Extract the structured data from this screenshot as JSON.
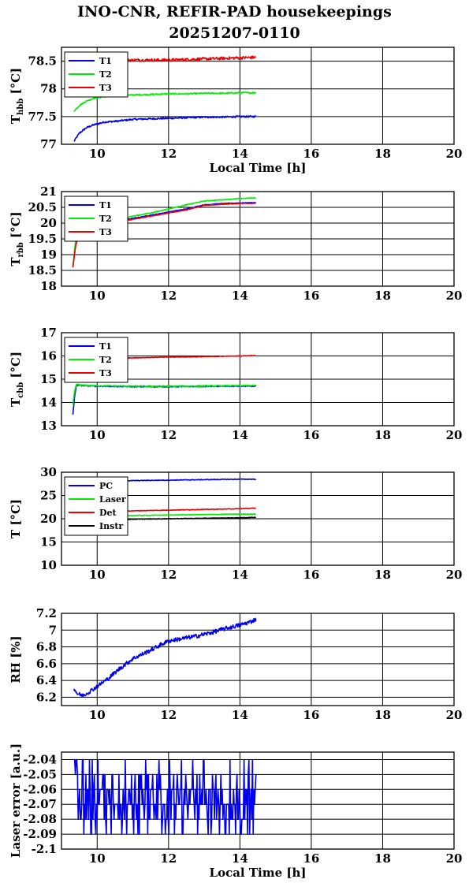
{
  "title_line1": "INO-CNR, REFIR-PAD housekeepings",
  "title_line2": "20251207-0110",
  "chart_data": [
    {
      "type": "line",
      "ylabel": "T",
      "ylabel_sub": "hbb",
      "ylabel_unit": " [°C]",
      "xlabel": "Local Time [h]",
      "xlim": [
        9,
        20
      ],
      "ylim": [
        77,
        78.75
      ],
      "xticks": [
        10,
        12,
        14,
        16,
        18,
        20
      ],
      "yticks": [
        77,
        77.5,
        78,
        78.5
      ],
      "ytick_labels": [
        "77",
        "77.5",
        "78",
        "78.5"
      ],
      "grid": true,
      "legend_position": "top-left",
      "series": [
        {
          "name": "T1",
          "color": "#0000ee",
          "x": [
            9.35,
            9.5,
            9.7,
            9.9,
            10.2,
            10.6,
            11,
            11.5,
            12,
            12.5,
            13,
            13.5,
            14,
            14.45
          ],
          "y": [
            77.05,
            77.2,
            77.3,
            77.35,
            77.4,
            77.42,
            77.45,
            77.46,
            77.47,
            77.48,
            77.49,
            77.49,
            77.5,
            77.5
          ],
          "noise": 0.015
        },
        {
          "name": "T2",
          "color": "#00ee00",
          "x": [
            9.35,
            9.5,
            9.7,
            9.9,
            10.2,
            10.6,
            11,
            11.5,
            12,
            12.5,
            13,
            13.5,
            14,
            14.45
          ],
          "y": [
            77.6,
            77.7,
            77.78,
            77.83,
            77.86,
            77.88,
            77.89,
            77.9,
            77.91,
            77.91,
            77.92,
            77.92,
            77.93,
            77.93
          ],
          "noise": 0.012
        },
        {
          "name": "T3",
          "color": "#ee0000",
          "x": [
            10.3,
            10.6,
            11,
            11.5,
            12,
            12.5,
            13,
            13.5,
            14,
            14.45
          ],
          "y": [
            78.5,
            78.51,
            78.52,
            78.52,
            78.52,
            78.53,
            78.54,
            78.55,
            78.56,
            78.57
          ],
          "noise": 0.025
        }
      ]
    },
    {
      "type": "line",
      "ylabel": "T",
      "ylabel_sub": "rbb",
      "ylabel_unit": " [°C]",
      "xlim": [
        9,
        20
      ],
      "ylim": [
        18,
        21
      ],
      "xticks": [
        10,
        12,
        14,
        16,
        18,
        20
      ],
      "yticks": [
        18,
        18.5,
        19,
        19.5,
        20,
        20.5,
        21
      ],
      "ytick_labels": [
        "18",
        "18.5",
        "19",
        "19.5",
        "20",
        "20.5",
        "21"
      ],
      "grid": true,
      "legend_position": "top-left",
      "series": [
        {
          "name": "T1",
          "color": "#0000ee",
          "x": [
            9.32,
            9.4,
            9.5,
            9.7,
            10,
            10.5,
            11,
            11.5,
            12,
            12.5,
            13,
            13.5,
            14,
            14.45
          ],
          "y": [
            18.6,
            19.4,
            19.7,
            19.85,
            19.95,
            20.05,
            20.15,
            20.25,
            20.35,
            20.45,
            20.58,
            20.62,
            20.64,
            20.65
          ],
          "noise": 0.01
        },
        {
          "name": "T2",
          "color": "#00ee00",
          "x": [
            9.32,
            9.4,
            9.5,
            9.7,
            10,
            10.5,
            11,
            11.5,
            12,
            12.5,
            13,
            13.5,
            14,
            14.45
          ],
          "y": [
            18.6,
            19.5,
            19.8,
            19.92,
            20.02,
            20.12,
            20.22,
            20.32,
            20.45,
            20.58,
            20.7,
            20.74,
            20.78,
            20.8
          ],
          "noise": 0.012
        },
        {
          "name": "T3",
          "color": "#ee0000",
          "x": [
            9.32,
            9.4,
            9.5,
            9.7,
            10,
            10.5,
            11,
            11.5,
            12,
            12.5,
            13,
            13.5,
            14,
            14.45
          ],
          "y": [
            18.6,
            19.3,
            19.65,
            19.82,
            19.92,
            20.02,
            20.12,
            20.22,
            20.32,
            20.42,
            20.56,
            20.6,
            20.62,
            20.63
          ],
          "noise": 0.01
        }
      ]
    },
    {
      "type": "line",
      "ylabel": "T",
      "ylabel_sub": "cbb",
      "ylabel_unit": " [°C]",
      "xlim": [
        9,
        20
      ],
      "ylim": [
        13,
        17
      ],
      "xticks": [
        10,
        12,
        14,
        16,
        18,
        20
      ],
      "yticks": [
        13,
        14,
        15,
        16,
        17
      ],
      "ytick_labels": [
        "13",
        "14",
        "15",
        "16",
        "17"
      ],
      "grid": true,
      "legend_position": "top-left",
      "series": [
        {
          "name": "T1",
          "color": "#0000ee",
          "x": [
            9.32,
            9.37,
            9.42,
            9.6,
            10,
            11,
            12,
            13,
            14,
            14.45
          ],
          "y": [
            13.5,
            14.3,
            14.75,
            14.72,
            14.7,
            14.68,
            14.68,
            14.69,
            14.7,
            14.7
          ],
          "noise": 0.02
        },
        {
          "name": "T2",
          "color": "#00ee00",
          "x": [
            9.32,
            9.37,
            9.42,
            9.6,
            10,
            11,
            12,
            13,
            14,
            14.45
          ],
          "y": [
            13.9,
            14.5,
            14.78,
            14.74,
            14.72,
            14.7,
            14.7,
            14.71,
            14.72,
            14.73
          ],
          "noise": 0.025
        },
        {
          "name": "T3",
          "color": "#ee0000",
          "x": [
            10.5,
            11,
            12,
            13,
            14,
            14.45
          ],
          "y": [
            15.9,
            15.92,
            15.95,
            15.97,
            16.0,
            16.02
          ],
          "noise": 0.012
        }
      ]
    },
    {
      "type": "line",
      "ylabel": "T [°C]",
      "xlim": [
        9,
        20
      ],
      "ylim": [
        10,
        30
      ],
      "xticks": [
        10,
        12,
        14,
        16,
        18,
        20
      ],
      "yticks": [
        10,
        15,
        20,
        25,
        30
      ],
      "ytick_labels": [
        "10",
        "15",
        "20",
        "25",
        "30"
      ],
      "grid": true,
      "legend_position": "top-left",
      "series": [
        {
          "name": "PC",
          "color": "#0000ee",
          "x": [
            10.4,
            11,
            12,
            13,
            14,
            14.45
          ],
          "y": [
            28.1,
            28.2,
            28.3,
            28.4,
            28.5,
            28.5
          ],
          "noise": 0.07
        },
        {
          "name": "Laser",
          "color": "#00ee00",
          "x": [
            9.4,
            10,
            11,
            12,
            13,
            14,
            14.45
          ],
          "y": [
            20.5,
            20.6,
            20.7,
            20.8,
            20.9,
            21.0,
            21.0
          ],
          "noise": 0.06
        },
        {
          "name": "Det",
          "color": "#ee0000",
          "x": [
            10.4,
            11,
            12,
            13,
            14,
            14.45
          ],
          "y": [
            21.6,
            21.7,
            21.85,
            22.0,
            22.15,
            22.3
          ],
          "noise": 0.06
        },
        {
          "name": "Instr",
          "color": "#000000",
          "x": [
            10.4,
            11,
            12,
            13,
            14,
            14.45
          ],
          "y": [
            19.8,
            19.9,
            20.0,
            20.1,
            20.2,
            20.3
          ],
          "noise": 0.05
        }
      ]
    },
    {
      "type": "line",
      "ylabel": "RH [%]",
      "xlim": [
        9,
        20
      ],
      "ylim": [
        6.1,
        7.2
      ],
      "xticks": [
        10,
        12,
        14,
        16,
        18,
        20
      ],
      "yticks": [
        6.2,
        6.4,
        6.6,
        6.8,
        7,
        7.2
      ],
      "ytick_labels": [
        "6.2",
        "6.4",
        "6.6",
        "6.8",
        "7",
        "7.2"
      ],
      "grid": true,
      "series": [
        {
          "name": "",
          "color": "#0000ee",
          "x": [
            9.35,
            9.45,
            9.6,
            9.8,
            10,
            10.3,
            10.6,
            11,
            11.4,
            11.8,
            12,
            12.4,
            12.8,
            13.2,
            13.6,
            14,
            14.3,
            14.45
          ],
          "y": [
            6.3,
            6.24,
            6.22,
            6.27,
            6.33,
            6.42,
            6.53,
            6.66,
            6.74,
            6.83,
            6.87,
            6.9,
            6.93,
            6.97,
            7.02,
            7.06,
            7.1,
            7.13
          ],
          "noise": 0.025
        }
      ]
    },
    {
      "type": "line",
      "ylabel": "Laser error [a.u.]",
      "xlabel": "Local Time [h]",
      "xlim": [
        9,
        20
      ],
      "ylim": [
        -2.1,
        -2.035
      ],
      "xticks": [
        10,
        12,
        14,
        16,
        18,
        20
      ],
      "yticks": [
        -2.1,
        -2.09,
        -2.08,
        -2.07,
        -2.06,
        -2.05,
        -2.04
      ],
      "ytick_labels": [
        "-2.1",
        "-2.09",
        "-2.08",
        "-2.07",
        "-2.06",
        "-2.05",
        "-2.04"
      ],
      "grid": true,
      "series": [
        {
          "name": "",
          "color": "#0000ee",
          "x": [
            9.35,
            14.45
          ],
          "quantized": true,
          "levels": [
            -2.04,
            -2.05,
            -2.06,
            -2.07,
            -2.08,
            -2.09
          ],
          "mean": -2.067
        }
      ]
    }
  ]
}
